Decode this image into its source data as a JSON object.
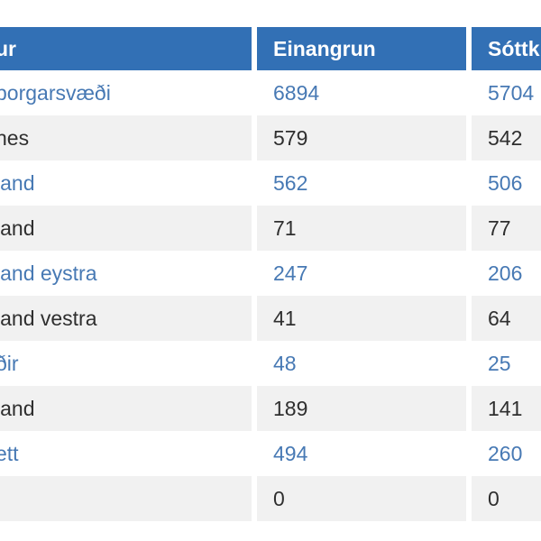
{
  "table": {
    "columns": [
      {
        "label": "ur"
      },
      {
        "label": "Einangrun"
      },
      {
        "label": "Sóttk"
      }
    ],
    "rows": [
      {
        "region": "borgarsvæði",
        "einangrun": "6894",
        "sottkvi": "5704"
      },
      {
        "region": "nes",
        "einangrun": "579",
        "sottkvi": "542"
      },
      {
        "region": "land",
        "einangrun": "562",
        "sottkvi": "506"
      },
      {
        "region": "land",
        "einangrun": "71",
        "sottkvi": "77"
      },
      {
        "region": "land eystra",
        "einangrun": "247",
        "sottkvi": "206"
      },
      {
        "region": "land vestra",
        "einangrun": "41",
        "sottkvi": "64"
      },
      {
        "region": "ðir",
        "einangrun": "48",
        "sottkvi": "25"
      },
      {
        "region": "land",
        "einangrun": "189",
        "sottkvi": "141"
      },
      {
        "region": "ett",
        "einangrun": "494",
        "sottkvi": "260"
      },
      {
        "region": "",
        "einangrun": "0",
        "sottkvi": "0"
      }
    ]
  },
  "colors": {
    "header_bg": "#3270b5",
    "header_text": "#ffffff",
    "link_text": "#4779b4",
    "dark_text": "#2f2f2f",
    "stripe_bg": "#f1f1f1",
    "gap": "#ffffff"
  },
  "chart_data": {
    "type": "table",
    "columns": [
      "ur",
      "Einangrun",
      "Sóttk"
    ],
    "rows": [
      [
        "borgarsvæði",
        6894,
        5704
      ],
      [
        "nes",
        579,
        542
      ],
      [
        "land",
        562,
        506
      ],
      [
        "land",
        71,
        77
      ],
      [
        "land eystra",
        247,
        206
      ],
      [
        "land vestra",
        41,
        64
      ],
      [
        "ðir",
        48,
        25
      ],
      [
        "land",
        189,
        141
      ],
      [
        "ett",
        494,
        260
      ],
      [
        "",
        0,
        0
      ]
    ]
  }
}
